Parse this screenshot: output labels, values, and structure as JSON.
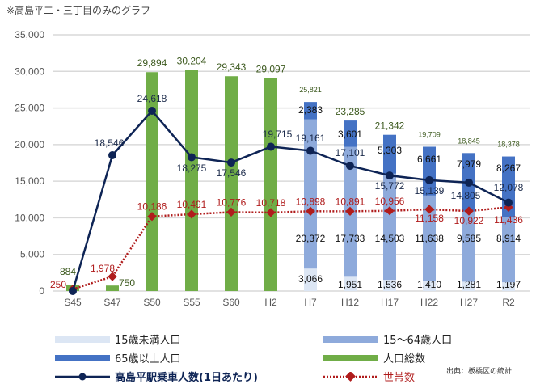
{
  "note": "※高島平二・三丁目のみのグラフ",
  "source": "出典：板橋区の統計",
  "colors": {
    "under15": "#dce6f4",
    "age15to64": "#8eaadb",
    "over65": "#4472c4",
    "total": "#70ad47",
    "riders": "#0e2455",
    "households": "#b01c1c"
  },
  "chart_data": {
    "type": "bar",
    "categories": [
      "S45",
      "S47",
      "S50",
      "S55",
      "S60",
      "H2",
      "H7",
      "H12",
      "H17",
      "H22",
      "H27",
      "R2"
    ],
    "ylim": [
      0,
      35000
    ],
    "yticks": [
      "0",
      "5,000",
      "10,000",
      "15,000",
      "20,000",
      "25,000",
      "30,000",
      "35,000"
    ],
    "grid": true,
    "legend_placement": "bottom",
    "series": [
      {
        "name": "15歳未満人口",
        "type": "stacked-bar",
        "values": [
          null,
          null,
          null,
          null,
          null,
          null,
          3066,
          1951,
          1536,
          1410,
          1281,
          1197
        ]
      },
      {
        "name": "15～64歳人口",
        "type": "stacked-bar",
        "values": [
          null,
          null,
          null,
          null,
          null,
          null,
          20372,
          17733,
          14503,
          11638,
          9585,
          8914
        ]
      },
      {
        "name": "65歳以上人口",
        "type": "stacked-bar",
        "values": [
          null,
          null,
          null,
          null,
          null,
          null,
          2383,
          3601,
          5303,
          6661,
          7979,
          8267
        ]
      },
      {
        "name": "人口総数",
        "type": "bar",
        "values": [
          884,
          750,
          29894,
          30204,
          29343,
          29097,
          25821,
          23285,
          21342,
          19709,
          18845,
          18378
        ]
      },
      {
        "name": "高島平駅乗車人数(1日あたり)",
        "type": "line",
        "values": [
          0,
          18546,
          24618,
          18275,
          17546,
          19715,
          19161,
          17101,
          15772,
          15139,
          14805,
          12078
        ]
      },
      {
        "name": "世帯数",
        "type": "line-dotted",
        "values": [
          250,
          1978,
          10186,
          10491,
          10776,
          10718,
          10898,
          10891,
          10956,
          11158,
          10922,
          11436
        ]
      }
    ]
  }
}
